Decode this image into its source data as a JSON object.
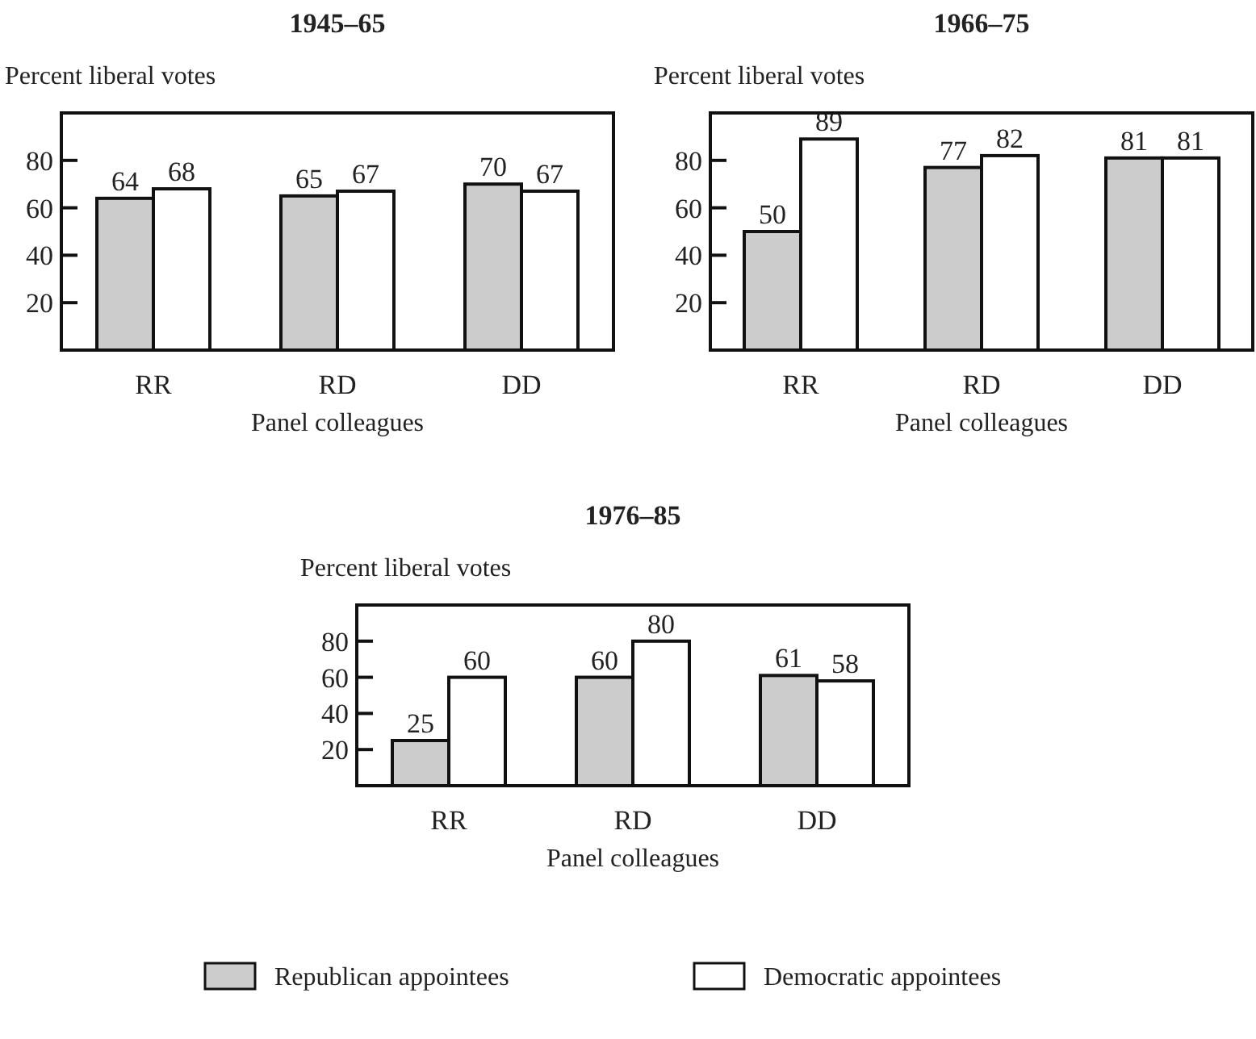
{
  "chart_data": [
    {
      "type": "bar",
      "title": "1945–65",
      "ylabel": "Percent liberal votes",
      "xlabel": "Panel colleagues",
      "categories": [
        "RR",
        "RD",
        "DD"
      ],
      "series": [
        {
          "color": "#cccccc",
          "values": [
            64,
            65,
            70
          ]
        },
        {
          "color": "#ffffff",
          "values": [
            68,
            67,
            67
          ]
        }
      ],
      "ylim": [
        0,
        100
      ],
      "yticks": [
        20,
        40,
        60,
        80
      ],
      "data_labels": true
    },
    {
      "type": "bar",
      "title": "1966–75",
      "ylabel": "Percent liberal votes",
      "xlabel": "Panel colleagues",
      "categories": [
        "RR",
        "RD",
        "DD"
      ],
      "series": [
        {
          "color": "#cccccc",
          "values": [
            50,
            77,
            81
          ]
        },
        {
          "color": "#ffffff",
          "values": [
            89,
            82,
            81
          ]
        }
      ],
      "ylim": [
        0,
        100
      ],
      "yticks": [
        20,
        40,
        60,
        80
      ],
      "data_labels": true
    },
    {
      "type": "bar",
      "title": "1976–85",
      "ylabel": "Percent liberal votes",
      "xlabel": "Panel colleagues",
      "categories": [
        "RR",
        "RD",
        "DD"
      ],
      "series": [
        {
          "name": "Republican appointees",
          "color": "#cccccc",
          "values": [
            25,
            60,
            61
          ]
        },
        {
          "name": "Democratic appointees",
          "color": "#ffffff",
          "values": [
            60,
            80,
            58
          ]
        }
      ],
      "ylim": [
        0,
        100
      ],
      "yticks": [
        20,
        40,
        60,
        80
      ],
      "data_labels": true,
      "legend": "bottom"
    }
  ]
}
